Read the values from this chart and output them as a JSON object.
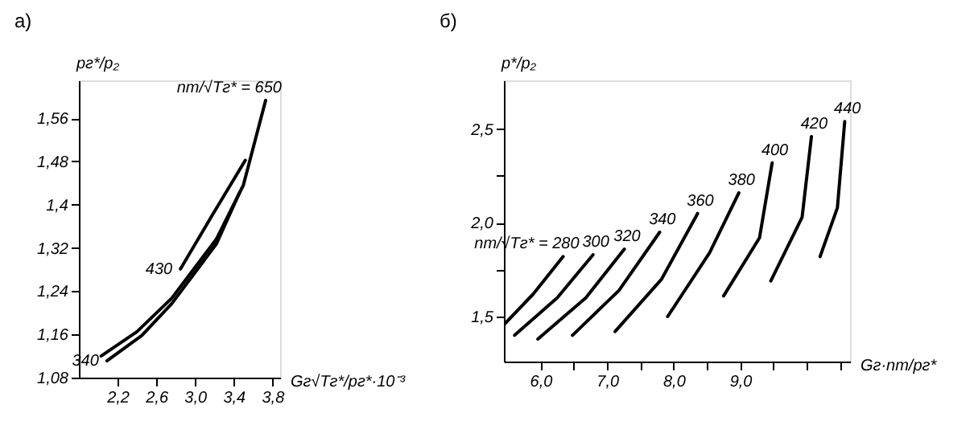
{
  "chart_data": [
    {
      "type": "line",
      "title": "а)",
      "ylabel": "pг*/p₂",
      "xlabel": "Gг√Tг*/pг*·10⁻³",
      "xlim": [
        1.8,
        3.88
      ],
      "ylim": [
        1.08,
        1.63
      ],
      "xticks": [
        {
          "value": 2.2,
          "label": "2,2"
        },
        {
          "value": 2.6,
          "label": "2,6"
        },
        {
          "value": 3.0,
          "label": "3,0"
        },
        {
          "value": 3.4,
          "label": "3,4"
        },
        {
          "value": 3.8,
          "label": "3,8"
        }
      ],
      "yticks": [
        {
          "value": 1.08,
          "label": "1,08"
        },
        {
          "value": 1.16,
          "label": "1,16"
        },
        {
          "value": 1.24,
          "label": "1,24"
        },
        {
          "value": 1.32,
          "label": "1,32"
        },
        {
          "value": 1.4,
          "label": "1,4"
        },
        {
          "value": 1.48,
          "label": "1,48"
        },
        {
          "value": 1.56,
          "label": "1,56"
        }
      ],
      "grid": false,
      "legend": false,
      "line_style": "solid",
      "series": [
        {
          "color": "#000000",
          "x": [
            2.03,
            2.4,
            2.76,
            3.22,
            3.5,
            3.73
          ],
          "values": [
            1.12,
            1.165,
            1.227,
            1.336,
            1.436,
            1.593
          ]
        },
        {
          "color": "#000000",
          "x": [
            2.85,
            3.18,
            3.52
          ],
          "values": [
            1.281,
            1.381,
            1.482
          ]
        },
        {
          "color": "#000000",
          "x": [
            2.09,
            2.45,
            2.76,
            3.22,
            3.46
          ],
          "values": [
            1.111,
            1.158,
            1.217,
            1.327,
            1.422
          ]
        }
      ],
      "annotations": [
        {
          "text": "nт/√Tг* = 650",
          "x": 3.73,
          "y": 1.593
        },
        {
          "text": "430",
          "x": 2.85,
          "y": 1.281
        },
        {
          "text": "340",
          "x": 2.09,
          "y": 1.111
        }
      ]
    },
    {
      "type": "line",
      "title": "б)",
      "ylabel": "p*/p₂",
      "xlabel": "Gг·nт/pг*",
      "xlim": [
        5.45,
        10.65
      ],
      "ylim": [
        1.26,
        2.76
      ],
      "xticks": [
        {
          "value": 6.0,
          "label": "6,0"
        },
        {
          "value": 6.5,
          "label": null
        },
        {
          "value": 7.0,
          "label": "7,0"
        },
        {
          "value": 7.5,
          "label": null
        },
        {
          "value": 8.0,
          "label": "8,0"
        },
        {
          "value": 8.5,
          "label": null
        },
        {
          "value": 9.0,
          "label": "9,0"
        },
        {
          "value": 9.5,
          "label": null
        },
        {
          "value": 10.0,
          "label": null
        },
        {
          "value": 10.5,
          "label": null
        }
      ],
      "yticks": [
        {
          "value": 1.5,
          "label": "1,5"
        },
        {
          "value": 1.75,
          "label": null
        },
        {
          "value": 2.0,
          "label": "2,0"
        },
        {
          "value": 2.25,
          "label": null
        },
        {
          "value": 2.5,
          "label": "2,5"
        }
      ],
      "grid": false,
      "legend": false,
      "line_style": "solid",
      "series": [
        {
          "color": "#000000",
          "x": [
            5.46,
            5.89,
            6.34
          ],
          "values": [
            1.46,
            1.62,
            1.82
          ]
        },
        {
          "color": "#000000",
          "x": [
            5.61,
            6.25,
            6.79
          ],
          "values": [
            1.4,
            1.6,
            1.83
          ]
        },
        {
          "color": "#000000",
          "x": [
            5.96,
            6.68,
            7.26
          ],
          "values": [
            1.38,
            1.6,
            1.86
          ]
        },
        {
          "color": "#000000",
          "x": [
            6.48,
            7.18,
            7.79
          ],
          "values": [
            1.4,
            1.64,
            1.95
          ]
        },
        {
          "color": "#000000",
          "x": [
            7.12,
            7.82,
            8.36
          ],
          "values": [
            1.42,
            1.7,
            2.05
          ]
        },
        {
          "color": "#000000",
          "x": [
            7.91,
            8.54,
            8.98
          ],
          "values": [
            1.5,
            1.84,
            2.16
          ]
        },
        {
          "color": "#000000",
          "x": [
            8.75,
            9.29,
            9.48
          ],
          "values": [
            1.61,
            1.92,
            2.32
          ]
        },
        {
          "color": "#000000",
          "x": [
            9.46,
            9.93,
            10.07
          ],
          "values": [
            1.69,
            2.03,
            2.46
          ]
        },
        {
          "color": "#000000",
          "x": [
            10.2,
            10.46,
            10.57
          ],
          "values": [
            1.82,
            2.08,
            2.54
          ]
        }
      ],
      "annotations": [
        {
          "text": "nт/√Tг* = 280",
          "x": 6.34,
          "y": 1.82
        },
        {
          "text": "300",
          "x": 6.79,
          "y": 1.83
        },
        {
          "text": "320",
          "x": 7.26,
          "y": 1.86
        },
        {
          "text": "340",
          "x": 7.79,
          "y": 1.95
        },
        {
          "text": "360",
          "x": 8.36,
          "y": 2.05
        },
        {
          "text": "380",
          "x": 8.98,
          "y": 2.16
        },
        {
          "text": "400",
          "x": 9.48,
          "y": 2.32
        },
        {
          "text": "420",
          "x": 10.07,
          "y": 2.46
        },
        {
          "text": "440",
          "x": 10.57,
          "y": 2.54
        }
      ]
    }
  ]
}
